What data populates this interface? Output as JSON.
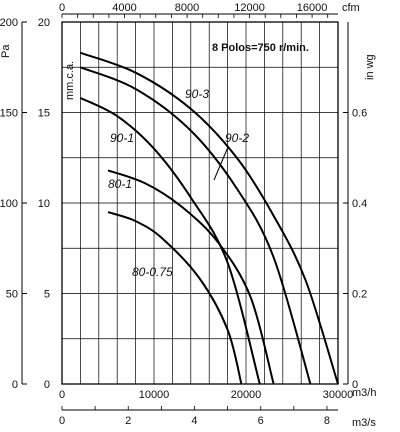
{
  "chart_data": {
    "type": "line",
    "annotation": "8 Polos=750 r/min.",
    "axes": {
      "x_bottom": {
        "unit": "m3/h",
        "range": [
          0,
          30000
        ],
        "ticks": [
          "0",
          "10000",
          "20000",
          "30000"
        ]
      },
      "x_bottom2": {
        "unit": "m3/s",
        "ticks": [
          "0",
          "2",
          "4",
          "6",
          "8"
        ]
      },
      "x_top": {
        "unit": "cfm",
        "ticks": [
          "0",
          "4000",
          "8000",
          "12000",
          "16000"
        ]
      },
      "y_left": {
        "unit": "Pa",
        "range": [
          0,
          200
        ],
        "ticks": [
          "0",
          "50",
          "100",
          "150",
          "200"
        ]
      },
      "y_left2": {
        "unit": "mm.c.a.",
        "ticks": [
          "0",
          "5",
          "10",
          "15",
          "20"
        ]
      },
      "y_right": {
        "unit": "in wg",
        "ticks": [
          "0",
          "0.2",
          "0.4",
          "0.6"
        ]
      }
    },
    "grid": true,
    "series": [
      {
        "name": "90-3",
        "x": [
          2000,
          8000,
          14000,
          19000,
          23000,
          26500,
          30000
        ],
        "y": [
          183,
          172,
          152,
          125,
          93,
          57,
          0
        ]
      },
      {
        "name": "90-2",
        "x": [
          2000,
          8000,
          14000,
          19000,
          23000,
          27000
        ],
        "y": [
          175,
          163,
          140,
          108,
          70,
          0
        ]
      },
      {
        "name": "90-1",
        "x": [
          2000,
          6000,
          10000,
          14000,
          18000,
          21500
        ],
        "y": [
          158,
          148,
          130,
          103,
          67,
          0
        ]
      },
      {
        "name": "80-1",
        "x": [
          5000,
          9000,
          13000,
          17000,
          20500,
          23000
        ],
        "y": [
          118,
          111,
          98,
          78,
          48,
          0
        ]
      },
      {
        "name": "80-0.75",
        "x": [
          5000,
          8000,
          11000,
          15000,
          18000,
          19500
        ],
        "y": [
          95,
          90,
          80,
          58,
          30,
          0
        ]
      }
    ],
    "series_labels": [
      "90-3",
      "90-2",
      "90-1",
      "80-1",
      "80-0.75"
    ]
  }
}
